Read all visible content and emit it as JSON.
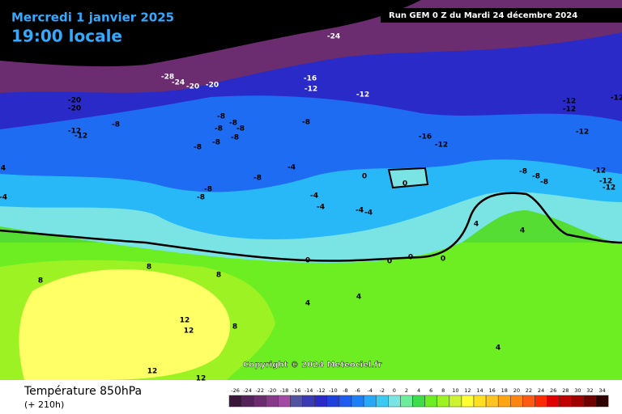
{
  "header": {
    "date": "Mercredi 1 janvier 2025",
    "time": "19:00 locale",
    "run": "Run GEM 0 Z du Mardi 24 décembre 2024"
  },
  "copyright": "Copyright © 2024 Meteociel.fr",
  "footer": {
    "title": "Température 850hPa",
    "lead": "(+ 210h)"
  },
  "legend": {
    "values": [
      -26,
      -24,
      -22,
      -20,
      -18,
      -16,
      -14,
      -12,
      -10,
      -8,
      -6,
      -4,
      -2,
      0,
      2,
      4,
      6,
      8,
      10,
      12,
      14,
      16,
      18,
      20,
      22,
      24,
      26,
      28,
      30,
      32,
      34
    ],
    "colors": [
      "#3a163a",
      "#55225a",
      "#6c2c70",
      "#883a8a",
      "#a24aa4",
      "#5252a0",
      "#3a3ab4",
      "#2a2ac8",
      "#1e40dc",
      "#1e5cf0",
      "#1e80f8",
      "#28a8f8",
      "#3ccaf0",
      "#7ae4e4",
      "#6cee9c",
      "#3ede4a",
      "#6cee22",
      "#9cf222",
      "#ccf233",
      "#ffff33",
      "#ffe020",
      "#ffc420",
      "#ffa412",
      "#ff8410",
      "#ff5a10",
      "#ff2a00",
      "#e00000",
      "#c00000",
      "#a00000",
      "#700000",
      "#300000"
    ]
  },
  "map_labels": [
    -24,
    -28,
    -24,
    -20,
    -20,
    -16,
    -12,
    -12,
    -20,
    -20,
    -8,
    -12,
    -12,
    -8,
    -8,
    -8,
    -8,
    -8,
    -8,
    -8,
    -8,
    -16,
    -12,
    -8,
    -4,
    -8,
    -8,
    -4,
    -4,
    0,
    0,
    -4,
    -4,
    0,
    0,
    0,
    0,
    4,
    4,
    8,
    8,
    8,
    12,
    12,
    8,
    12,
    12,
    4,
    4,
    4,
    -12,
    -12,
    -12,
    -12,
    -12,
    -12,
    -12,
    -8,
    -8,
    -8,
    4,
    -4
  ]
}
